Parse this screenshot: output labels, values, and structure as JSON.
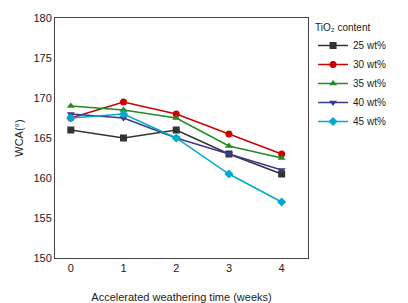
{
  "chart_data": {
    "type": "line",
    "x_label": "Accelerated weathering time (weeks)",
    "y_label": "WCA(°)",
    "legend_title": "TiO₂ content",
    "x": [
      0,
      1,
      2,
      3,
      4
    ],
    "series": [
      {
        "name": "25 wt%",
        "values": [
          166.0,
          165.0,
          166.0,
          163.0,
          160.5
        ],
        "color": "#333333",
        "marker": "square",
        "line_style": "solid"
      },
      {
        "name": "30 wt%",
        "values": [
          167.5,
          169.5,
          168.0,
          165.5,
          163.0
        ],
        "color": "#cc0000",
        "marker": "circle",
        "line_style": "solid"
      },
      {
        "name": "35 wt%",
        "values": [
          169.0,
          168.5,
          167.5,
          164.0,
          162.5
        ],
        "color": "#228B22",
        "marker": "triangle-up",
        "line_style": "solid"
      },
      {
        "name": "40 wt%",
        "values": [
          168.0,
          167.5,
          165.0,
          163.0,
          161.0
        ],
        "color": "#3a3a8c",
        "marker": "triangle-down",
        "line_style": "solid"
      },
      {
        "name": "45 wt%",
        "values": [
          167.5,
          168.0,
          165.0,
          160.5,
          157.0
        ],
        "color": "#00aacc",
        "marker": "diamond",
        "line_style": "solid"
      }
    ],
    "xlim": [
      -0.3,
      4.5
    ],
    "xticks": [
      0,
      1,
      2,
      3,
      4
    ],
    "ylim": [
      150,
      180
    ],
    "yticks": [
      150,
      155,
      160,
      165,
      170,
      175,
      180
    ],
    "grid": false,
    "legend": "right"
  }
}
